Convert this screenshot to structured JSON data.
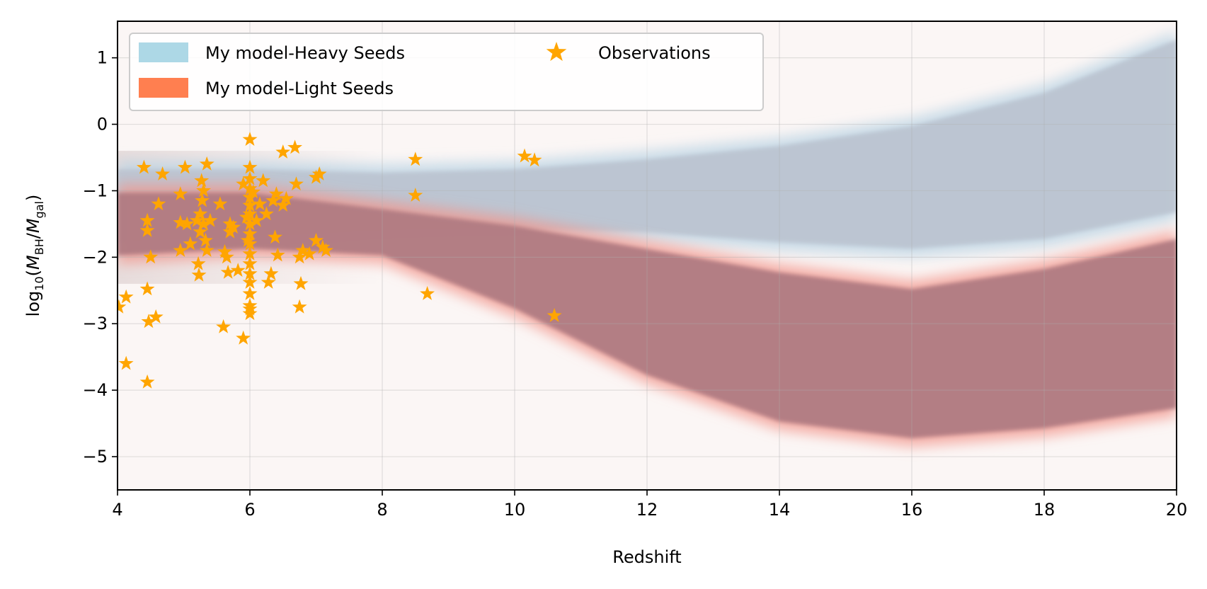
{
  "chart_data": {
    "type": "scatter",
    "title": "",
    "xlabel": "Redshift",
    "ylabel": {
      "prefix": "log",
      "log_sub": "10",
      "open": "(",
      "m": "M",
      "bh_sub": "BH",
      "slash": "/",
      "m2": "M",
      "gal_sub": "gal",
      "close": ")"
    },
    "xlim": [
      4,
      20
    ],
    "ylim": [
      -5.5,
      1.55
    ],
    "x_ticks": [
      4,
      6,
      8,
      10,
      12,
      14,
      16,
      18,
      20
    ],
    "y_ticks": [
      1,
      0,
      -1,
      -2,
      -3,
      -4,
      -5
    ],
    "y_tick_labels": [
      "1",
      "0",
      "−1",
      "−2",
      "−3",
      "−4",
      "−5"
    ],
    "grid": true,
    "legend": {
      "position": "top-left",
      "columns": 2,
      "entries": [
        {
          "label": "My model-Heavy Seeds",
          "kind": "patch",
          "color": "#add8e6"
        },
        {
          "label": "My model-Light Seeds",
          "kind": "patch",
          "color": "#ff7f50"
        },
        {
          "label": "Observations",
          "kind": "star",
          "color": "#ffa500"
        }
      ]
    },
    "bands": [
      {
        "name": "My model-Heavy Seeds",
        "color": "#b9d3e3",
        "core_color": "#bcc4d1",
        "x": [
          4,
          6,
          8,
          10,
          12,
          14,
          16,
          18,
          20
        ],
        "upper": [
          -0.55,
          -0.55,
          -0.6,
          -0.55,
          -0.4,
          -0.2,
          0.1,
          0.6,
          1.4
        ],
        "lower": [
          -1.9,
          -1.85,
          -1.75,
          -1.7,
          -1.75,
          -1.9,
          -2.0,
          -1.85,
          -1.45
        ]
      },
      {
        "name": "My model-Light Seeds",
        "color": "#f2978d",
        "core_color": "#b07b82",
        "x": [
          4,
          6,
          8,
          10,
          12,
          14,
          16,
          18,
          20
        ],
        "upper": [
          -0.9,
          -0.9,
          -1.15,
          -1.4,
          -1.75,
          -2.1,
          -2.35,
          -2.05,
          -1.6
        ],
        "lower": [
          -2.1,
          -2.0,
          -2.1,
          -2.9,
          -3.9,
          -4.6,
          -4.85,
          -4.7,
          -4.4
        ]
      }
    ],
    "observations": {
      "name": "Observations",
      "color": "#ffa500",
      "points": [
        [
          4.02,
          -2.75
        ],
        [
          4.13,
          -2.6
        ],
        [
          4.13,
          -3.6
        ],
        [
          4.4,
          -0.65
        ],
        [
          4.45,
          -1.45
        ],
        [
          4.45,
          -1.6
        ],
        [
          4.45,
          -2.48
        ],
        [
          4.45,
          -3.88
        ],
        [
          4.47,
          -2.97
        ],
        [
          4.5,
          -2.0
        ],
        [
          4.58,
          -2.9
        ],
        [
          4.62,
          -1.2
        ],
        [
          4.68,
          -0.75
        ],
        [
          4.95,
          -1.05
        ],
        [
          4.95,
          -1.48
        ],
        [
          4.95,
          -1.9
        ],
        [
          5.02,
          -0.65
        ],
        [
          5.05,
          -1.5
        ],
        [
          5.1,
          -1.8
        ],
        [
          5.2,
          -1.45
        ],
        [
          5.22,
          -2.1
        ],
        [
          5.23,
          -2.27
        ],
        [
          5.25,
          -1.35
        ],
        [
          5.25,
          -1.62
        ],
        [
          5.27,
          -0.85
        ],
        [
          5.28,
          -1.15
        ],
        [
          5.3,
          -1.0
        ],
        [
          5.3,
          -1.5
        ],
        [
          5.33,
          -1.75
        ],
        [
          5.35,
          -0.6
        ],
        [
          5.35,
          -1.9
        ],
        [
          5.4,
          -1.45
        ],
        [
          5.55,
          -1.2
        ],
        [
          5.6,
          -3.05
        ],
        [
          5.62,
          -1.92
        ],
        [
          5.65,
          -2.0
        ],
        [
          5.67,
          -2.23
        ],
        [
          5.7,
          -1.5
        ],
        [
          5.7,
          -1.62
        ],
        [
          5.75,
          -1.55
        ],
        [
          5.82,
          -2.2
        ],
        [
          5.9,
          -3.22
        ],
        [
          5.9,
          -0.9
        ],
        [
          5.95,
          -1.4
        ],
        [
          5.97,
          -1.75
        ],
        [
          6.0,
          -0.23
        ],
        [
          6.0,
          -0.65
        ],
        [
          6.0,
          -0.82
        ],
        [
          6.0,
          -0.97
        ],
        [
          6.0,
          -1.1
        ],
        [
          6.0,
          -1.22
        ],
        [
          6.0,
          -1.35
        ],
        [
          6.0,
          -1.5
        ],
        [
          6.0,
          -1.65
        ],
        [
          6.0,
          -1.8
        ],
        [
          6.0,
          -1.95
        ],
        [
          6.0,
          -2.1
        ],
        [
          6.0,
          -2.25
        ],
        [
          6.0,
          -2.38
        ],
        [
          6.0,
          -2.55
        ],
        [
          6.0,
          -2.73
        ],
        [
          6.0,
          -2.78
        ],
        [
          6.0,
          -2.85
        ],
        [
          6.05,
          -1.02
        ],
        [
          6.1,
          -1.45
        ],
        [
          6.15,
          -1.2
        ],
        [
          6.2,
          -0.85
        ],
        [
          6.25,
          -1.35
        ],
        [
          6.28,
          -2.38
        ],
        [
          6.32,
          -2.25
        ],
        [
          6.35,
          -1.15
        ],
        [
          6.38,
          -1.7
        ],
        [
          6.4,
          -1.05
        ],
        [
          6.42,
          -1.97
        ],
        [
          6.5,
          -0.42
        ],
        [
          6.5,
          -1.22
        ],
        [
          6.55,
          -1.12
        ],
        [
          6.68,
          -0.35
        ],
        [
          6.7,
          -0.9
        ],
        [
          6.75,
          -2.0
        ],
        [
          6.75,
          -2.75
        ],
        [
          6.77,
          -2.4
        ],
        [
          6.8,
          -1.9
        ],
        [
          6.9,
          -1.95
        ],
        [
          7.0,
          -0.8
        ],
        [
          7.0,
          -1.75
        ],
        [
          7.05,
          -0.75
        ],
        [
          7.1,
          -1.85
        ],
        [
          7.15,
          -1.9
        ],
        [
          8.5,
          -0.53
        ],
        [
          8.5,
          -1.07
        ],
        [
          8.68,
          -2.55
        ],
        [
          10.15,
          -0.48
        ],
        [
          10.3,
          -0.54
        ],
        [
          10.6,
          -2.88
        ]
      ]
    }
  }
}
